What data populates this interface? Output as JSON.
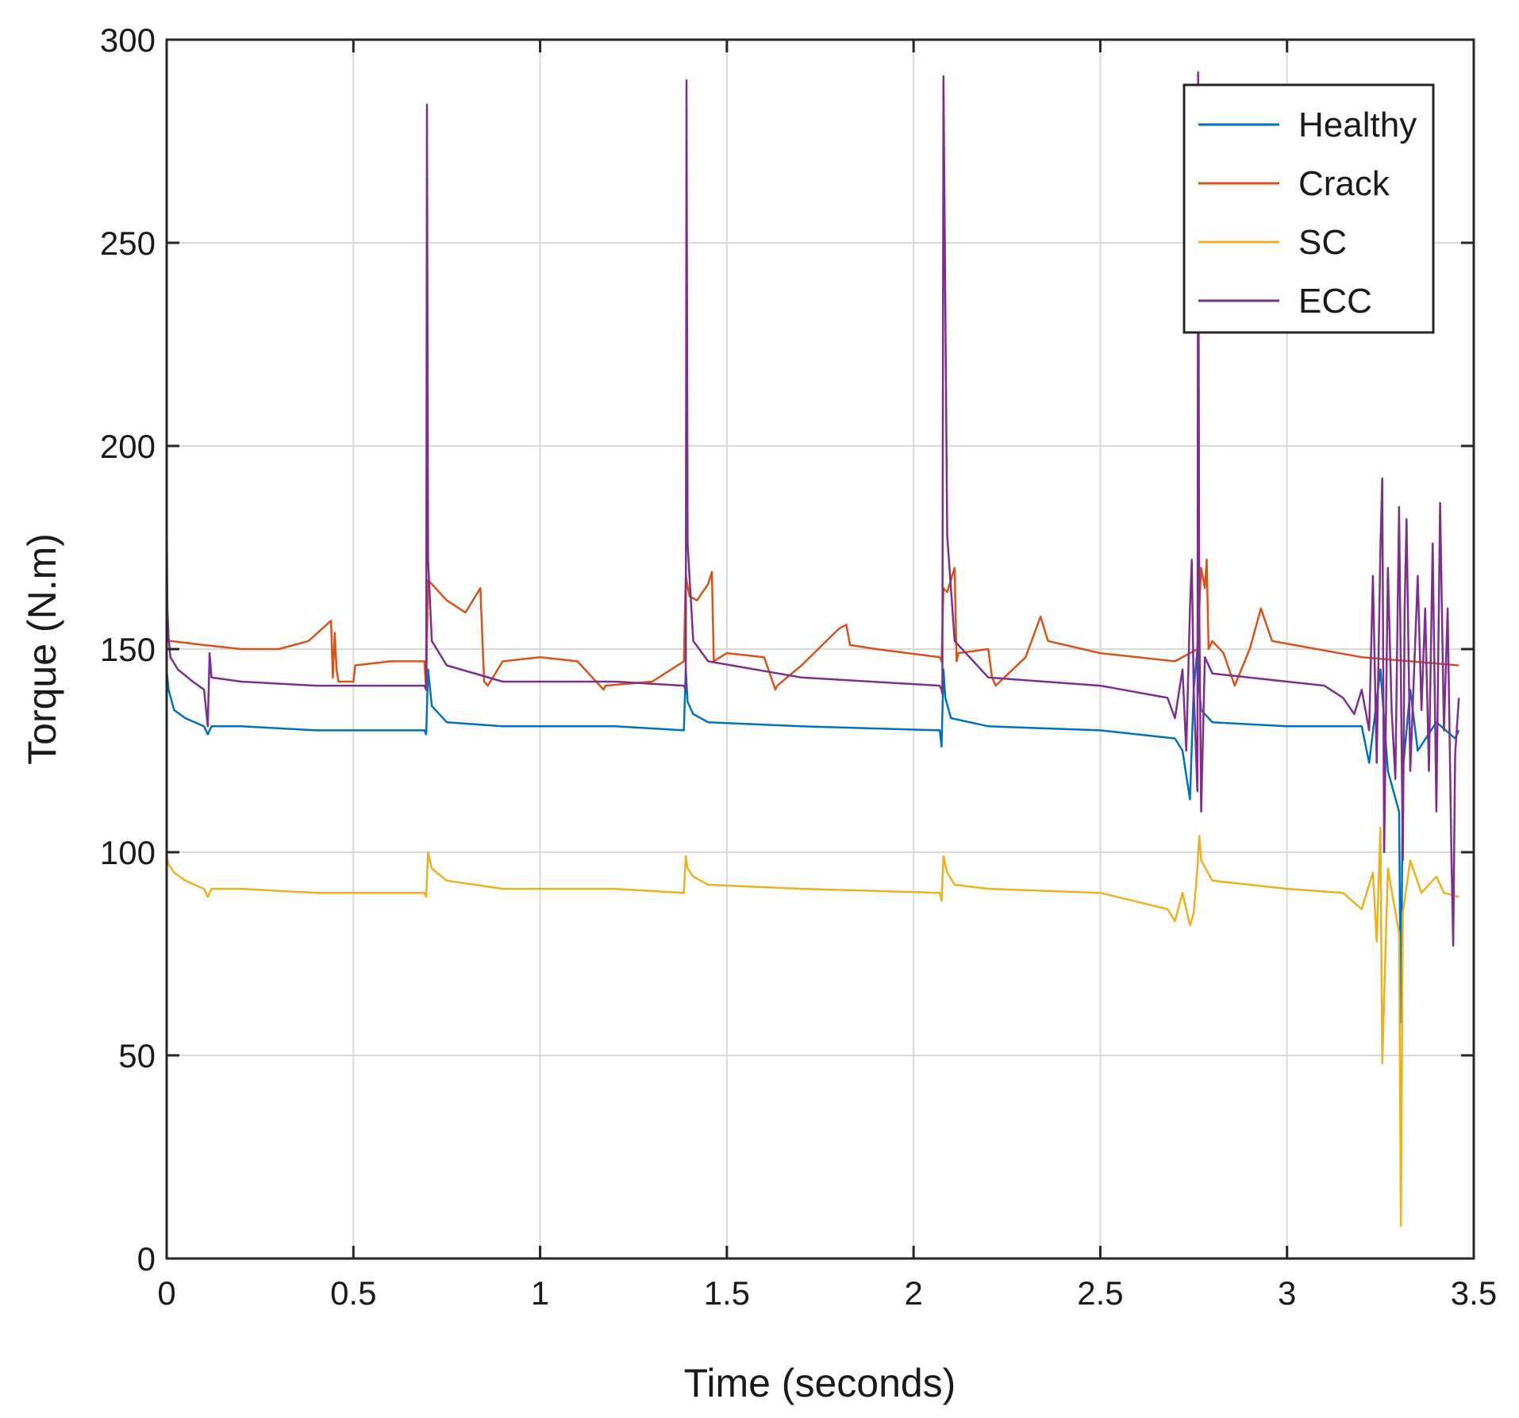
{
  "chart_data": {
    "type": "line",
    "title": "",
    "xlabel": "Time (seconds)",
    "ylabel": "Torque (N.m)",
    "xlim": [
      0,
      3.5
    ],
    "ylim": [
      0,
      300
    ],
    "grid": true,
    "legend_position": "top-right",
    "xticks": [
      0,
      0.5,
      1,
      1.5,
      2,
      2.5,
      3,
      3.5
    ],
    "xtick_labels": [
      "0",
      "0.5",
      "1",
      "1.5",
      "2",
      "2.5",
      "3",
      "3.5"
    ],
    "yticks": [
      0,
      50,
      100,
      150,
      200,
      250,
      300
    ],
    "ytick_labels": [
      "0",
      "50",
      "100",
      "150",
      "200",
      "250",
      "300"
    ],
    "series": [
      {
        "name": "Healthy",
        "color": "#0072bd",
        "x": [
          0,
          0.005,
          0.02,
          0.05,
          0.1,
          0.11,
          0.12,
          0.2,
          0.4,
          0.69,
          0.695,
          0.7,
          0.71,
          0.75,
          0.9,
          1.2,
          1.385,
          1.39,
          1.395,
          1.41,
          1.45,
          1.7,
          2.07,
          2.075,
          2.08,
          2.085,
          2.1,
          2.2,
          2.5,
          2.7,
          2.72,
          2.74,
          2.75,
          2.76,
          2.765,
          2.77,
          2.8,
          3.0,
          3.2,
          3.22,
          3.25,
          3.27,
          3.3,
          3.305,
          3.31,
          3.33,
          3.35,
          3.4,
          3.45,
          3.46
        ],
        "y": [
          145,
          140,
          135,
          133,
          131,
          129,
          131,
          131,
          130,
          130,
          129,
          145,
          136,
          132,
          131,
          131,
          130,
          145,
          137,
          134,
          132,
          131,
          130,
          126,
          145,
          138,
          133,
          131,
          130,
          128,
          125,
          113,
          140,
          150,
          140,
          135,
          132,
          131,
          131,
          122,
          145,
          120,
          110,
          58,
          120,
          140,
          125,
          132,
          128,
          130
        ]
      },
      {
        "name": "Crack",
        "color": "#d95319",
        "x": [
          0,
          0.01,
          0.1,
          0.2,
          0.3,
          0.38,
          0.44,
          0.445,
          0.45,
          0.455,
          0.46,
          0.5,
          0.505,
          0.6,
          0.69,
          0.695,
          0.7,
          0.75,
          0.8,
          0.84,
          0.85,
          0.86,
          0.9,
          1.0,
          1.1,
          1.17,
          1.175,
          1.3,
          1.385,
          1.39,
          1.4,
          1.42,
          1.45,
          1.46,
          1.465,
          1.5,
          1.6,
          1.63,
          1.635,
          1.7,
          1.8,
          1.82,
          1.83,
          1.9,
          2.07,
          2.075,
          2.08,
          2.09,
          2.11,
          2.115,
          2.12,
          2.2,
          2.21,
          2.22,
          2.3,
          2.34,
          2.36,
          2.5,
          2.7,
          2.76,
          2.77,
          2.78,
          2.785,
          2.79,
          2.8,
          2.83,
          2.86,
          2.9,
          2.93,
          2.96,
          3.2,
          3.46
        ],
        "y": [
          152,
          152,
          151,
          150,
          150,
          152,
          157,
          143,
          154,
          145,
          142,
          142,
          146,
          147,
          147,
          140,
          167,
          162,
          159,
          165,
          142,
          141,
          147,
          148,
          147,
          140,
          141,
          142,
          147,
          168,
          163,
          162,
          166,
          169,
          147,
          149,
          148,
          140,
          141,
          146,
          155,
          156,
          151,
          150,
          148,
          147,
          165,
          164,
          170,
          147,
          149,
          150,
          143,
          141,
          148,
          158,
          152,
          149,
          147,
          150,
          170,
          165,
          172,
          150,
          152,
          149,
          141,
          150,
          160,
          152,
          148,
          146
        ]
      },
      {
        "name": "SC",
        "color": "#edb120",
        "x": [
          0,
          0.005,
          0.02,
          0.05,
          0.1,
          0.11,
          0.12,
          0.2,
          0.4,
          0.69,
          0.695,
          0.7,
          0.71,
          0.75,
          0.9,
          1.2,
          1.385,
          1.39,
          1.395,
          1.41,
          1.45,
          1.7,
          2.07,
          2.075,
          2.08,
          2.09,
          2.11,
          2.2,
          2.5,
          2.68,
          2.7,
          2.72,
          2.74,
          2.75,
          2.76,
          2.765,
          2.77,
          2.8,
          3.0,
          3.15,
          3.2,
          3.23,
          3.24,
          3.25,
          3.255,
          3.27,
          3.3,
          3.305,
          3.31,
          3.33,
          3.36,
          3.4,
          3.42,
          3.46
        ],
        "y": [
          99,
          97,
          95,
          93,
          91,
          89,
          91,
          91,
          90,
          90,
          89,
          100,
          96,
          93,
          91,
          91,
          90,
          99,
          96,
          94,
          92,
          91,
          90,
          88,
          99,
          95,
          92,
          91,
          90,
          86,
          83,
          90,
          82,
          85,
          96,
          104,
          98,
          93,
          91,
          90,
          86,
          95,
          78,
          106,
          48,
          96,
          80,
          8,
          85,
          98,
          90,
          94,
          90,
          89
        ]
      },
      {
        "name": "ECC",
        "color": "#7e2f8e",
        "x": [
          0,
          0.002,
          0.005,
          0.01,
          0.03,
          0.07,
          0.1,
          0.11,
          0.115,
          0.12,
          0.2,
          0.4,
          0.69,
          0.695,
          0.697,
          0.7,
          0.71,
          0.75,
          0.9,
          1.2,
          1.385,
          1.39,
          1.392,
          1.395,
          1.41,
          1.45,
          1.7,
          2.07,
          2.075,
          2.077,
          2.08,
          2.09,
          2.11,
          2.2,
          2.5,
          2.68,
          2.7,
          2.72,
          2.73,
          2.74,
          2.745,
          2.75,
          2.76,
          2.762,
          2.765,
          2.77,
          2.78,
          2.8,
          3.0,
          3.1,
          3.15,
          3.18,
          3.2,
          3.22,
          3.23,
          3.24,
          3.25,
          3.255,
          3.26,
          3.27,
          3.28,
          3.29,
          3.3,
          3.31,
          3.315,
          3.32,
          3.33,
          3.35,
          3.36,
          3.37,
          3.38,
          3.39,
          3.4,
          3.41,
          3.42,
          3.43,
          3.44,
          3.445,
          3.45,
          3.46
        ],
        "y": [
          186,
          160,
          153,
          148,
          145,
          142,
          140,
          131,
          149,
          143,
          142,
          141,
          141,
          140,
          284,
          172,
          152,
          146,
          142,
          142,
          141,
          140,
          290,
          176,
          152,
          147,
          143,
          141,
          140,
          139,
          291,
          178,
          152,
          143,
          141,
          138,
          133,
          145,
          125,
          160,
          172,
          140,
          115,
          292,
          160,
          110,
          148,
          144,
          142,
          141,
          138,
          134,
          140,
          130,
          168,
          122,
          175,
          192,
          100,
          170,
          135,
          118,
          185,
          98,
          160,
          182,
          120,
          168,
          135,
          160,
          120,
          176,
          110,
          186,
          130,
          160,
          100,
          77,
          124,
          138
        ]
      }
    ]
  }
}
